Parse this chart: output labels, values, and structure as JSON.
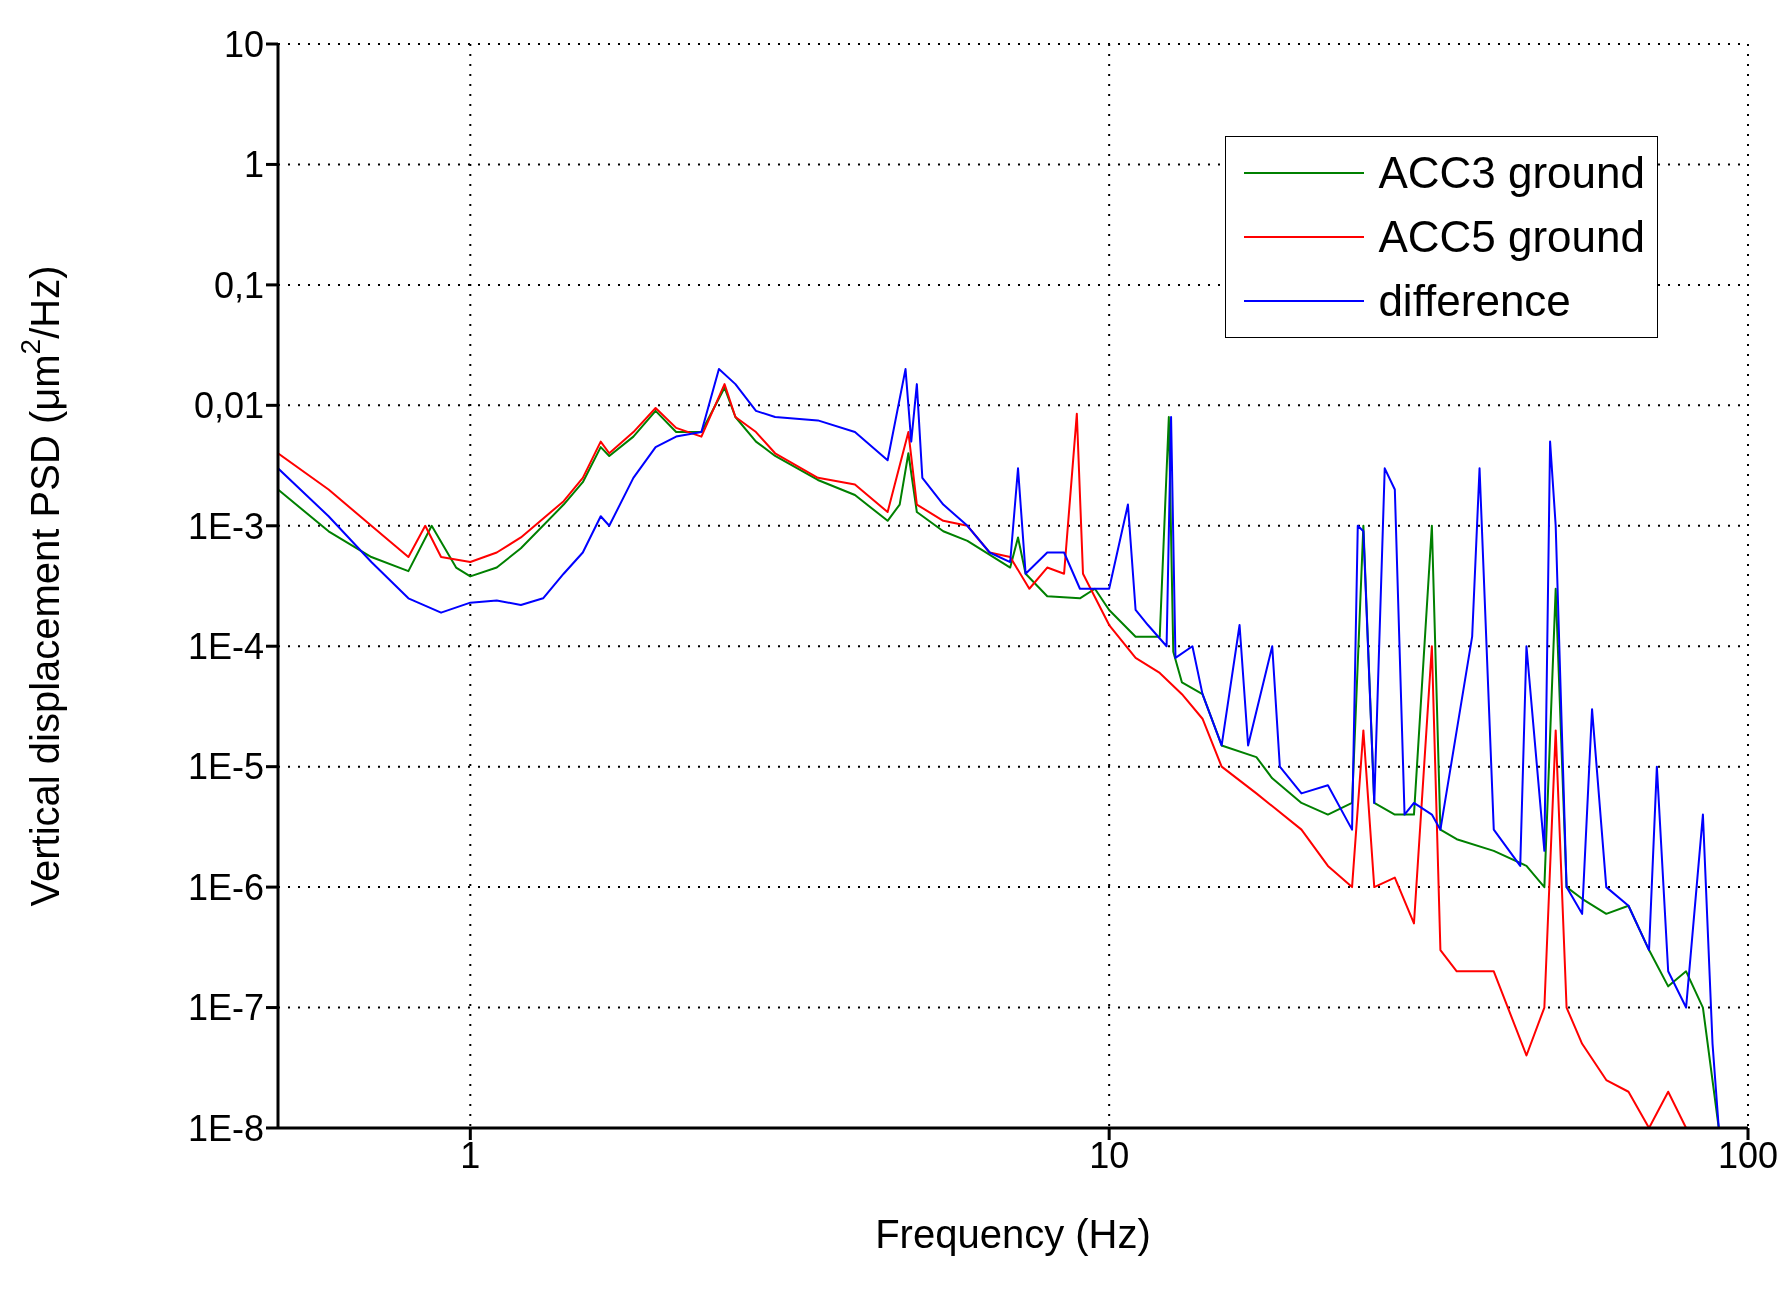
{
  "chart_data": {
    "type": "line",
    "xlabel": "Frequency (Hz)",
    "ylabel": "Vertical displacement PSD (μm$^{2}$/Hz)",
    "log": "xy",
    "grid": true,
    "legend": "top right",
    "marker": "none",
    "line_style": "solid",
    "xlim": [
      0.5,
      100
    ],
    "xticks": [
      1,
      10,
      100
    ],
    "ylim": [
      1e-08,
      10
    ],
    "yticks": [
      {
        "value": 1e-08,
        "label": "1E-8"
      },
      {
        "value": 1e-07,
        "label": "1E-7"
      },
      {
        "value": 1e-06,
        "label": "1E-6"
      },
      {
        "value": 1e-05,
        "label": "1E-5"
      },
      {
        "value": 0.0001,
        "label": "1E-4"
      },
      {
        "value": 0.001,
        "label": "1E-3"
      },
      {
        "value": 0.01,
        "label": "0,01"
      },
      {
        "value": 0.1,
        "label": "0,1"
      },
      1,
      10
    ],
    "series": [
      {
        "name": "ACC3 ground",
        "color": "#008000",
        "x": [
          0.5,
          0.6,
          0.7,
          0.8,
          0.87,
          0.95,
          1.0,
          1.1,
          1.2,
          1.4,
          1.5,
          1.6,
          1.65,
          1.8,
          1.95,
          2.1,
          2.3,
          2.5,
          2.6,
          2.8,
          3.0,
          3.5,
          4.0,
          4.5,
          4.7,
          4.85,
          5.0,
          5.5,
          6,
          7,
          7.2,
          7.4,
          8,
          9,
          9.5,
          10,
          11,
          12,
          12.4,
          12.6,
          13,
          14,
          15,
          17,
          18,
          20,
          22,
          24,
          25,
          26,
          28,
          30,
          32,
          33,
          35,
          40,
          45,
          48,
          50,
          52,
          55,
          60,
          65,
          70,
          75,
          80,
          85,
          90
        ],
        "values": [
          0.002,
          0.0009,
          0.00055,
          0.00042,
          0.001,
          0.00045,
          0.00038,
          0.00045,
          0.00065,
          0.0015,
          0.0023,
          0.0045,
          0.0038,
          0.0055,
          0.009,
          0.006,
          0.006,
          0.014,
          0.008,
          0.005,
          0.0038,
          0.0024,
          0.0018,
          0.0011,
          0.0015,
          0.004,
          0.0013,
          0.0009,
          0.00075,
          0.00045,
          0.0008,
          0.0004,
          0.00026,
          0.00025,
          0.0003,
          0.0002,
          0.00012,
          0.00012,
          0.008,
          9e-05,
          5e-05,
          4e-05,
          1.5e-05,
          1.2e-05,
          8e-06,
          5e-06,
          4e-06,
          5e-06,
          0.001,
          5e-06,
          4e-06,
          4e-06,
          0.001,
          3e-06,
          2.5e-06,
          2e-06,
          1.5e-06,
          1e-06,
          0.0003,
          1e-06,
          8e-07,
          6e-07,
          7e-07,
          3e-07,
          1.5e-07,
          2e-07,
          1e-07,
          1e-08
        ]
      },
      {
        "name": "ACC5 ground",
        "color": "#ff0000",
        "x": [
          0.5,
          0.6,
          0.7,
          0.8,
          0.85,
          0.9,
          1.0,
          1.1,
          1.2,
          1.4,
          1.5,
          1.6,
          1.65,
          1.8,
          1.95,
          2.1,
          2.3,
          2.5,
          2.6,
          2.8,
          3.0,
          3.5,
          4.0,
          4.5,
          4.85,
          5.0,
          5.5,
          6,
          6.5,
          7,
          7.5,
          8,
          8.5,
          8.9,
          9.1,
          10,
          11,
          12,
          13,
          14,
          15,
          17,
          20,
          22,
          24,
          25,
          26,
          28,
          30,
          32,
          33,
          35,
          40,
          45,
          48,
          50,
          52,
          55,
          60,
          65,
          70,
          75,
          80
        ],
        "values": [
          0.004,
          0.002,
          0.001,
          0.00055,
          0.001,
          0.00055,
          0.0005,
          0.0006,
          0.0008,
          0.0016,
          0.0025,
          0.005,
          0.004,
          0.006,
          0.0095,
          0.0065,
          0.0055,
          0.015,
          0.008,
          0.006,
          0.004,
          0.0025,
          0.0022,
          0.0013,
          0.006,
          0.0015,
          0.0011,
          0.001,
          0.0006,
          0.00055,
          0.0003,
          0.00045,
          0.0004,
          0.0085,
          0.0004,
          0.00015,
          8e-05,
          6e-05,
          4e-05,
          2.5e-05,
          1e-05,
          6e-06,
          3e-06,
          1.5e-06,
          1e-06,
          2e-05,
          1e-06,
          1.2e-06,
          5e-07,
          0.0001,
          3e-07,
          2e-07,
          2e-07,
          4e-08,
          1e-07,
          2e-05,
          1e-07,
          5e-08,
          2.5e-08,
          2e-08,
          1e-08,
          2e-08,
          1e-08
        ]
      },
      {
        "name": "difference",
        "color": "#0000ff",
        "x": [
          0.5,
          0.6,
          0.7,
          0.8,
          0.9,
          1.0,
          1.1,
          1.2,
          1.3,
          1.4,
          1.5,
          1.6,
          1.65,
          1.8,
          1.95,
          2.1,
          2.3,
          2.45,
          2.6,
          2.8,
          3.0,
          3.5,
          4.0,
          4.5,
          4.8,
          4.9,
          5.0,
          5.1,
          5.5,
          6,
          6.5,
          7,
          7.2,
          7.4,
          8,
          8.5,
          9,
          9.5,
          10,
          10.7,
          11,
          11.5,
          12.3,
          12.5,
          12.7,
          13.5,
          14,
          15,
          16,
          16.5,
          18,
          18.5,
          20,
          22,
          24,
          24.5,
          25,
          26,
          27,
          28,
          29,
          30,
          32,
          33,
          35,
          37,
          38,
          40,
          44,
          45,
          48,
          49,
          50,
          52,
          55,
          57,
          60,
          65,
          70,
          72,
          75,
          80,
          85,
          88,
          90
        ],
        "values": [
          0.003,
          0.0012,
          0.0005,
          0.00025,
          0.00019,
          0.00023,
          0.00024,
          0.00022,
          0.00025,
          0.0004,
          0.0006,
          0.0012,
          0.001,
          0.0025,
          0.0045,
          0.0055,
          0.006,
          0.02,
          0.015,
          0.009,
          0.008,
          0.0075,
          0.006,
          0.0035,
          0.02,
          0.005,
          0.015,
          0.0025,
          0.0015,
          0.001,
          0.0006,
          0.0005,
          0.003,
          0.0004,
          0.0006,
          0.0006,
          0.0003,
          0.0003,
          0.0003,
          0.0015,
          0.0002,
          0.00015,
          0.0001,
          0.008,
          8e-05,
          0.0001,
          4e-05,
          1.5e-05,
          0.00015,
          1.5e-05,
          0.0001,
          1e-05,
          6e-06,
          7e-06,
          3e-06,
          0.001,
          0.0009,
          5e-06,
          0.003,
          0.002,
          4e-06,
          5e-06,
          4e-06,
          3e-06,
          2e-05,
          0.00012,
          0.003,
          3e-06,
          1.5e-06,
          0.0001,
          2e-06,
          0.005,
          0.001,
          1e-06,
          6e-07,
          3e-05,
          1e-06,
          7e-07,
          3e-07,
          1e-05,
          2e-07,
          1e-07,
          4e-06,
          5e-08,
          1e-08
        ]
      }
    ]
  }
}
